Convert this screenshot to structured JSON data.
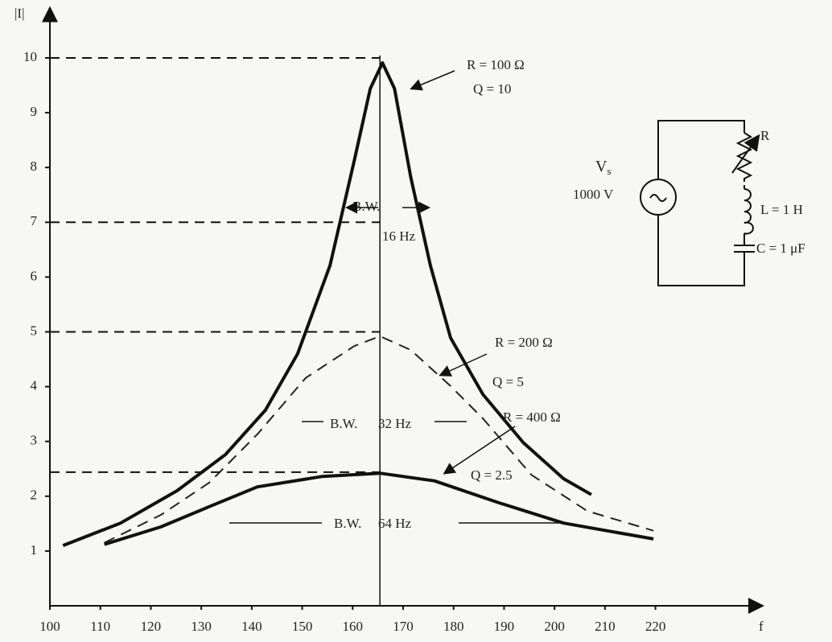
{
  "chart_data": {
    "type": "line",
    "y_label": "|I|",
    "x_label": "f",
    "xlim": [
      100,
      240
    ],
    "ylim": [
      0,
      10.8
    ],
    "xticks": [
      100,
      110,
      120,
      130,
      140,
      150,
      160,
      170,
      180,
      190,
      200,
      210,
      220
    ],
    "yticks": [
      1,
      2,
      3,
      4,
      5,
      6,
      7,
      8,
      9,
      10
    ],
    "reference_lines": [
      10,
      7,
      5,
      2.44
    ],
    "center_line": 165.4,
    "series": [
      {
        "name": "R = 100 Ω",
        "q": "Q = 10",
        "bw": [
          "B.W.",
          "16 Hz"
        ],
        "color": "#111",
        "dashed": false,
        "x": [
          102.6,
          114,
          125.2,
          134.8,
          142.7,
          149.1,
          155.5,
          160.3,
          163.5,
          165.9,
          168.3,
          171.5,
          175.4,
          179.4,
          185.8,
          193.8,
          201.8,
          207.3
        ],
        "values": [
          1.1,
          1.51,
          2.1,
          2.76,
          3.57,
          4.6,
          6.21,
          8.12,
          9.44,
          9.91,
          9.44,
          7.83,
          6.21,
          4.89,
          3.86,
          2.98,
          2.32,
          2.03
        ]
      },
      {
        "name": "R = 200 Ω",
        "q": "Q = 5",
        "bw": [
          "B.W.",
          "32 Hz"
        ],
        "color": "#222",
        "dashed": true,
        "x": [
          110.8,
          122,
          131.6,
          141.1,
          150.7,
          160.3,
          165.4,
          171.5,
          179.4,
          185.8,
          195.4,
          206.5,
          219.6
        ],
        "values": [
          1.15,
          1.66,
          2.25,
          3.13,
          4.16,
          4.74,
          4.92,
          4.67,
          4.01,
          3.42,
          2.39,
          1.73,
          1.37
        ]
      },
      {
        "name": "R = 400 Ω",
        "q": "Q = 2.5",
        "bw": [
          "B.W.",
          "64 Hz"
        ],
        "color": "#111",
        "dashed": false,
        "x": [
          110.8,
          122,
          131.6,
          141.1,
          153.9,
          165.4,
          176.2,
          189,
          201.8,
          219.6
        ],
        "values": [
          1.12,
          1.44,
          1.81,
          2.17,
          2.36,
          2.42,
          2.28,
          1.88,
          1.51,
          1.22
        ]
      }
    ]
  },
  "circuit": {
    "source": "V",
    "source_sub": "s",
    "voltage": "1000 V",
    "resistor": "R",
    "inductor": "L = 1 H",
    "capacitor": "C = 1 μF"
  }
}
